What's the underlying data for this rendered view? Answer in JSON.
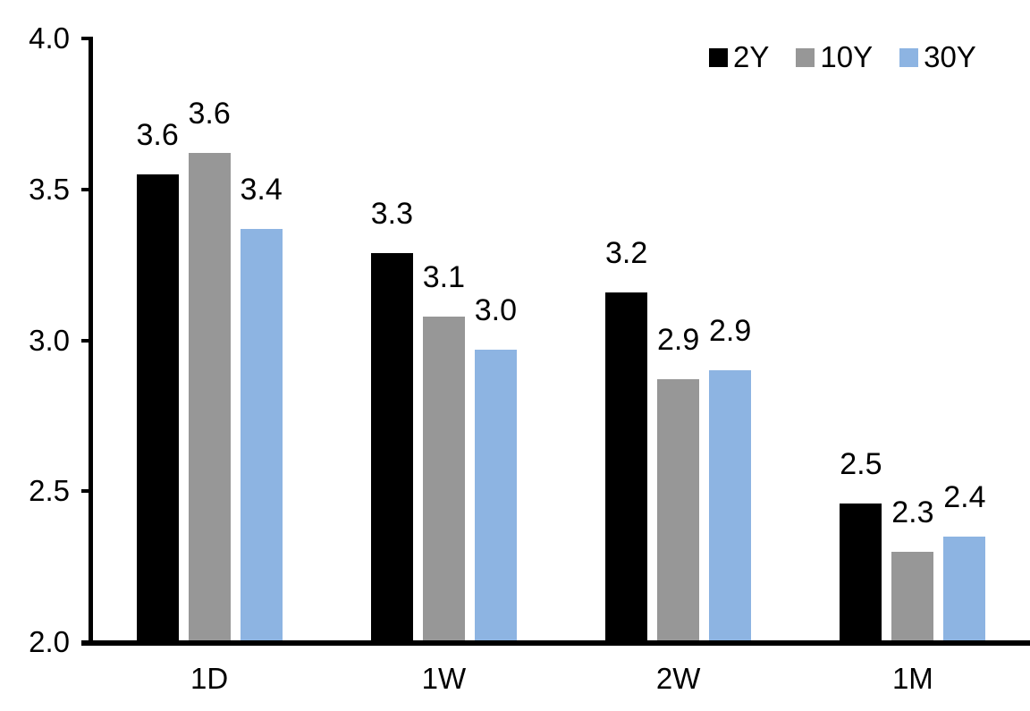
{
  "chart_data": {
    "type": "bar",
    "title": "",
    "xlabel": "",
    "ylabel": "",
    "categories": [
      "1D",
      "1W",
      "2W",
      "1M"
    ],
    "series": [
      {
        "name": "2Y",
        "color": "#000000",
        "values": [
          3.55,
          3.29,
          3.16,
          2.46
        ],
        "labels": [
          "3.6",
          "3.3",
          "3.2",
          "2.5"
        ]
      },
      {
        "name": "10Y",
        "color": "#979797",
        "values": [
          3.62,
          3.08,
          2.87,
          2.3
        ],
        "labels": [
          "3.6",
          "3.1",
          "2.9",
          "2.3"
        ]
      },
      {
        "name": "30Y",
        "color": "#8DB4E2",
        "values": [
          3.37,
          2.97,
          2.9,
          2.35
        ],
        "labels": [
          "3.4",
          "3.0",
          "2.9",
          "2.4"
        ]
      }
    ],
    "ylim": [
      2.0,
      4.0
    ],
    "ytick_values": [
      2.0,
      2.5,
      3.0,
      3.5,
      4.0
    ],
    "ytick_labels": [
      "2.0",
      "2.5",
      "3.0",
      "3.5",
      "4.0"
    ],
    "grid": false,
    "legend_position": "top-right",
    "axis_color": "#000000",
    "background_color": "#ffffff"
  }
}
